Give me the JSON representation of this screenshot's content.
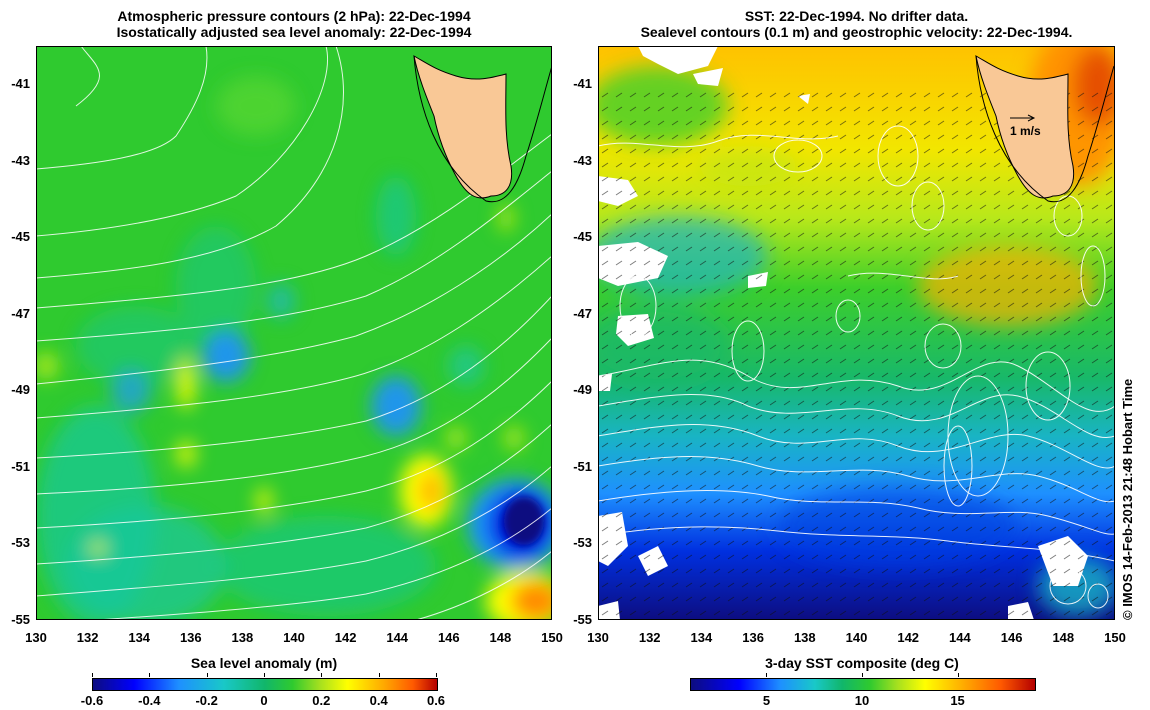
{
  "left_panel": {
    "title_line1": "Atmospheric pressure contours (2 hPa): 22-Dec-1994",
    "title_line2": "Isostatically adjusted sea level anomaly: 22-Dec-1994",
    "colorbar_title": "Sea level anomaly (m)",
    "colorbar_ticks": [
      "-0.6",
      "-0.4",
      "-0.2",
      "0",
      "0.2",
      "0.4",
      "0.6"
    ],
    "colorbar_range": [
      -0.6,
      0.6
    ]
  },
  "right_panel": {
    "title_line1": "SST: 22-Dec-1994. No drifter data.",
    "title_line2": "Sealevel contours (0.1 m) and geostrophic velocity: 22-Dec-1994.",
    "colorbar_title": "3-day SST composite (deg C)",
    "colorbar_ticks": [
      "5",
      "10",
      "15"
    ],
    "colorbar_values": [
      5,
      10,
      15
    ],
    "colorbar_range": [
      1,
      19
    ],
    "velocity_scale_label": "1 m/s"
  },
  "axes": {
    "lon_ticks": [
      "130",
      "132",
      "134",
      "136",
      "138",
      "140",
      "142",
      "144",
      "146",
      "148",
      "150"
    ],
    "lon_range": [
      130,
      150
    ],
    "lat_ticks": [
      "-41",
      "-43",
      "-45",
      "-47",
      "-49",
      "-51",
      "-53",
      "-55"
    ],
    "lat_range": [
      -55,
      -40
    ]
  },
  "credit": "© IMOS 14-Feb-2013 21:48 Hobart Time",
  "colors": {
    "land": "#f9c896",
    "sla_base": "#2fca2f",
    "contour": "#ffffff"
  }
}
